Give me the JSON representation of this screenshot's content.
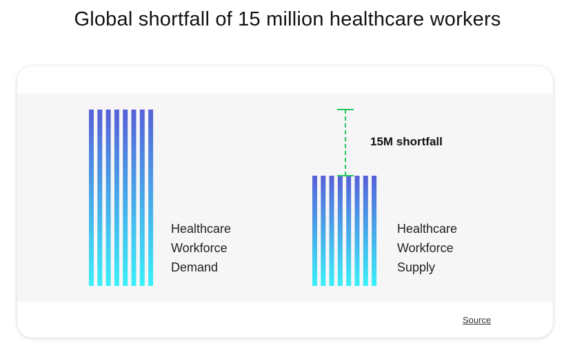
{
  "title": "Global shortfall of 15 million healthcare workers",
  "source_label": "Source",
  "colors": {
    "bar_top": "#5660d8",
    "bar_bottom": "#3af0fa",
    "shortfall_line": "#22c55e"
  },
  "chart_data": {
    "type": "bar",
    "categories": [
      "Healthcare Workforce Demand",
      "Healthcare Workforce Supply"
    ],
    "labels": [
      "Healthcare\nWorkforce\nDemand",
      "Healthcare\nWorkforce\nSupply"
    ],
    "values": [
      40,
      25
    ],
    "unit": "million workers",
    "ylim": [
      0,
      40
    ],
    "grid": false,
    "legend": "none",
    "annotation": {
      "text": "15M shortfall",
      "value": 15,
      "between": [
        "Healthcare Workforce Supply",
        "Healthcare Workforce Demand"
      ]
    }
  }
}
